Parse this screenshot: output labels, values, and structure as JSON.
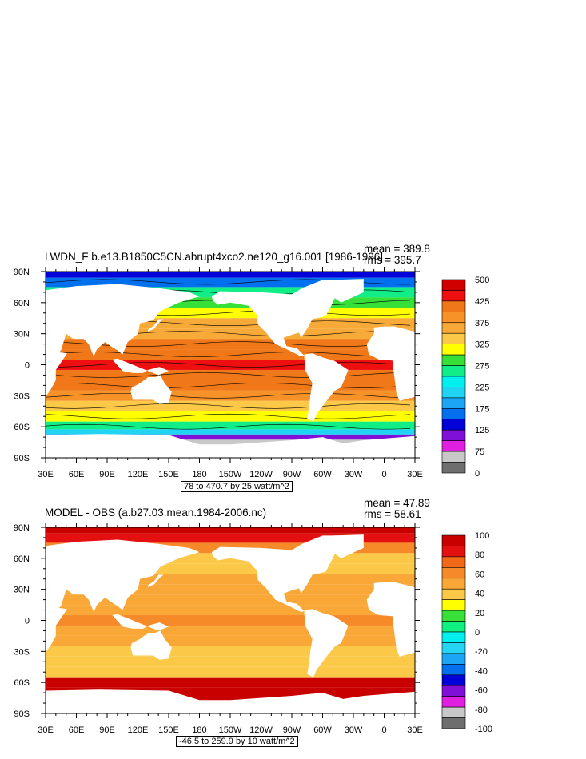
{
  "chart_data": [
    {
      "type": "heatmap",
      "title": "LWDN_F b.e13.B1850C5CN.abrupt4xco2.ne120_g16.001 [1986-1996]",
      "mean_label": "mean = 389.8",
      "rms_label": "rms = 395.7",
      "range_label": "78 to 470.7 by 25 watt/m^2",
      "xticks": [
        "30E",
        "60E",
        "90E",
        "120E",
        "150E",
        "180",
        "150W",
        "120W",
        "90W",
        "60W",
        "30W",
        "0",
        "30E"
      ],
      "yticks": [
        "90N",
        "60N",
        "30N",
        "0",
        "30S",
        "60S",
        "90S"
      ],
      "xlim": [
        30,
        390
      ],
      "ylim": [
        -90,
        90
      ],
      "colorbar_labels": [
        "500",
        "425",
        "375",
        "325",
        "275",
        "225",
        "175",
        "125",
        "75",
        "0"
      ],
      "colorbar_colors": [
        "#d00000",
        "#ee1010",
        "#f07818",
        "#f79228",
        "#f8aa38",
        "#fcc848",
        "#ffff00",
        "#36e038",
        "#11ee88",
        "#00f0f0",
        "#22d4f4",
        "#1aa6f4",
        "#0070ee",
        "#0000d8",
        "#8010d8",
        "#e020e0",
        "#c8c8c8",
        "#6e6e6e"
      ],
      "zonal_profile": [
        {
          "lat": 88,
          "value": 175
        },
        {
          "lat": 80,
          "value": 200
        },
        {
          "lat": 70,
          "value": 290
        },
        {
          "lat": 60,
          "value": 320
        },
        {
          "lat": 50,
          "value": 360
        },
        {
          "lat": 40,
          "value": 390
        },
        {
          "lat": 30,
          "value": 410
        },
        {
          "lat": 20,
          "value": 440
        },
        {
          "lat": 10,
          "value": 460
        },
        {
          "lat": 0,
          "value": 465
        },
        {
          "lat": -10,
          "value": 460
        },
        {
          "lat": -20,
          "value": 445
        },
        {
          "lat": -30,
          "value": 420
        },
        {
          "lat": -40,
          "value": 385
        },
        {
          "lat": -50,
          "value": 345
        },
        {
          "lat": -60,
          "value": 310
        },
        {
          "lat": -65,
          "value": 260
        },
        {
          "lat": -70,
          "value": 160
        },
        {
          "lat": -75,
          "value": 110
        }
      ]
    },
    {
      "type": "heatmap",
      "title": "MODEL - OBS (a.b27.03.mean.1984-2006.nc)",
      "mean_label": "mean = 47.89",
      "rms_label": "rms = 58.61",
      "range_label": "-46.5 to 259.9 by 10 watt/m^2",
      "xticks": [
        "30E",
        "60E",
        "90E",
        "120E",
        "150E",
        "180",
        "150W",
        "120W",
        "90W",
        "60W",
        "30W",
        "0",
        "30E"
      ],
      "yticks": [
        "90N",
        "60N",
        "30N",
        "0",
        "30S",
        "60S",
        "90S"
      ],
      "xlim": [
        30,
        390
      ],
      "ylim": [
        -90,
        90
      ],
      "colorbar_labels": [
        "100",
        "80",
        "60",
        "40",
        "20",
        "0",
        "-20",
        "-40",
        "-60",
        "-80",
        "-100"
      ],
      "colorbar_colors": [
        "#c80000",
        "#e41010",
        "#f06818",
        "#f78a28",
        "#f9a838",
        "#fcc848",
        "#ffff00",
        "#38e038",
        "#10f080",
        "#00f0f0",
        "#26d4f4",
        "#1aa6f4",
        "#0070ee",
        "#0000d8",
        "#8010d8",
        "#e020e0",
        "#c8c8c8",
        "#6e6e6e"
      ],
      "zonal_profile": [
        {
          "lat": 88,
          "value": 95
        },
        {
          "lat": 80,
          "value": 90
        },
        {
          "lat": 70,
          "value": 60
        },
        {
          "lat": 60,
          "value": 40
        },
        {
          "lat": 50,
          "value": 45
        },
        {
          "lat": 40,
          "value": 48
        },
        {
          "lat": 30,
          "value": 50
        },
        {
          "lat": 20,
          "value": 50
        },
        {
          "lat": 10,
          "value": 55
        },
        {
          "lat": 0,
          "value": 60
        },
        {
          "lat": -10,
          "value": 55
        },
        {
          "lat": -20,
          "value": 50
        },
        {
          "lat": -30,
          "value": 40
        },
        {
          "lat": -40,
          "value": 38
        },
        {
          "lat": -50,
          "value": 45
        },
        {
          "lat": -60,
          "value": 95
        },
        {
          "lat": -70,
          "value": 100
        }
      ]
    }
  ]
}
